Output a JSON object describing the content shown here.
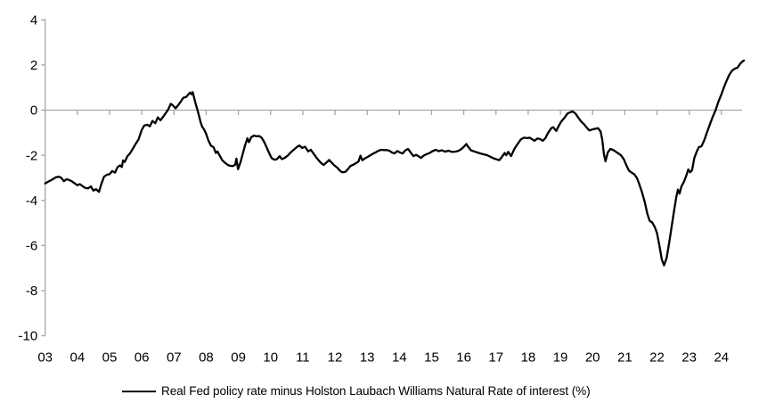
{
  "chart_data": {
    "type": "line",
    "title": "",
    "grid": false,
    "zero_line": true,
    "legend_position": "bottom",
    "line_color": "#000000",
    "axis_color": "#a6a6a6",
    "xlim": [
      2003,
      2024.75
    ],
    "ylim": [
      -10,
      4
    ],
    "x_ticks": [
      {
        "value": 2003,
        "label": "03"
      },
      {
        "value": 2004,
        "label": "04"
      },
      {
        "value": 2005,
        "label": "05"
      },
      {
        "value": 2006,
        "label": "06"
      },
      {
        "value": 2007,
        "label": "07"
      },
      {
        "value": 2008,
        "label": "08"
      },
      {
        "value": 2009,
        "label": "09"
      },
      {
        "value": 2010,
        "label": "10"
      },
      {
        "value": 2011,
        "label": "11"
      },
      {
        "value": 2012,
        "label": "12"
      },
      {
        "value": 2013,
        "label": "13"
      },
      {
        "value": 2014,
        "label": "14"
      },
      {
        "value": 2015,
        "label": "15"
      },
      {
        "value": 2016,
        "label": "16"
      },
      {
        "value": 2017,
        "label": "17"
      },
      {
        "value": 2018,
        "label": "18"
      },
      {
        "value": 2019,
        "label": "19"
      },
      {
        "value": 2020,
        "label": "20"
      },
      {
        "value": 2021,
        "label": "21"
      },
      {
        "value": 2022,
        "label": "22"
      },
      {
        "value": 2023,
        "label": "23"
      },
      {
        "value": 2024,
        "label": "24"
      }
    ],
    "y_ticks": [
      {
        "value": 4,
        "label": "4"
      },
      {
        "value": 2,
        "label": "2"
      },
      {
        "value": 0,
        "label": "0"
      },
      {
        "value": -2,
        "label": "-2"
      },
      {
        "value": -4,
        "label": "-4"
      },
      {
        "value": -6,
        "label": "-6"
      },
      {
        "value": -8,
        "label": "-8"
      },
      {
        "value": -10,
        "label": "-10"
      }
    ],
    "series": [
      {
        "name": "Real Fed policy rate minus Holston Laubach Williams Natural Rate of interest (%)",
        "points": [
          [
            2003.0,
            -3.25
          ],
          [
            2003.08,
            -3.18
          ],
          [
            2003.17,
            -3.12
          ],
          [
            2003.25,
            -3.05
          ],
          [
            2003.33,
            -2.98
          ],
          [
            2003.42,
            -2.95
          ],
          [
            2003.5,
            -3.0
          ],
          [
            2003.58,
            -3.15
          ],
          [
            2003.67,
            -3.06
          ],
          [
            2003.75,
            -3.1
          ],
          [
            2003.83,
            -3.16
          ],
          [
            2003.92,
            -3.25
          ],
          [
            2004.0,
            -3.33
          ],
          [
            2004.08,
            -3.28
          ],
          [
            2004.17,
            -3.38
          ],
          [
            2004.25,
            -3.45
          ],
          [
            2004.33,
            -3.47
          ],
          [
            2004.42,
            -3.38
          ],
          [
            2004.5,
            -3.57
          ],
          [
            2004.58,
            -3.5
          ],
          [
            2004.67,
            -3.62
          ],
          [
            2004.75,
            -3.25
          ],
          [
            2004.83,
            -2.95
          ],
          [
            2004.92,
            -2.86
          ],
          [
            2005.0,
            -2.84
          ],
          [
            2005.08,
            -2.7
          ],
          [
            2005.17,
            -2.77
          ],
          [
            2005.25,
            -2.52
          ],
          [
            2005.33,
            -2.45
          ],
          [
            2005.38,
            -2.52
          ],
          [
            2005.42,
            -2.23
          ],
          [
            2005.47,
            -2.3
          ],
          [
            2005.55,
            -2.05
          ],
          [
            2005.63,
            -1.92
          ],
          [
            2005.72,
            -1.72
          ],
          [
            2005.8,
            -1.52
          ],
          [
            2005.9,
            -1.3
          ],
          [
            2006.0,
            -0.88
          ],
          [
            2006.08,
            -0.68
          ],
          [
            2006.17,
            -0.65
          ],
          [
            2006.25,
            -0.72
          ],
          [
            2006.33,
            -0.48
          ],
          [
            2006.42,
            -0.58
          ],
          [
            2006.5,
            -0.32
          ],
          [
            2006.58,
            -0.45
          ],
          [
            2006.67,
            -0.28
          ],
          [
            2006.75,
            -0.12
          ],
          [
            2006.83,
            0.05
          ],
          [
            2006.9,
            0.28
          ],
          [
            2006.97,
            0.2
          ],
          [
            2007.05,
            0.08
          ],
          [
            2007.13,
            0.22
          ],
          [
            2007.21,
            0.38
          ],
          [
            2007.29,
            0.55
          ],
          [
            2007.38,
            0.58
          ],
          [
            2007.46,
            0.72
          ],
          [
            2007.5,
            0.78
          ],
          [
            2007.54,
            0.7
          ],
          [
            2007.58,
            0.8
          ],
          [
            2007.67,
            0.3
          ],
          [
            2007.75,
            -0.1
          ],
          [
            2007.83,
            -0.55
          ],
          [
            2007.88,
            -0.75
          ],
          [
            2007.92,
            -0.82
          ],
          [
            2007.99,
            -1.02
          ],
          [
            2008.07,
            -1.35
          ],
          [
            2008.15,
            -1.58
          ],
          [
            2008.23,
            -1.64
          ],
          [
            2008.3,
            -1.9
          ],
          [
            2008.35,
            -1.83
          ],
          [
            2008.42,
            -2.02
          ],
          [
            2008.5,
            -2.22
          ],
          [
            2008.58,
            -2.33
          ],
          [
            2008.67,
            -2.43
          ],
          [
            2008.75,
            -2.47
          ],
          [
            2008.83,
            -2.48
          ],
          [
            2008.9,
            -2.42
          ],
          [
            2008.94,
            -2.15
          ],
          [
            2008.99,
            -2.62
          ],
          [
            2009.06,
            -2.33
          ],
          [
            2009.13,
            -1.97
          ],
          [
            2009.2,
            -1.6
          ],
          [
            2009.28,
            -1.25
          ],
          [
            2009.33,
            -1.42
          ],
          [
            2009.4,
            -1.2
          ],
          [
            2009.48,
            -1.13
          ],
          [
            2009.56,
            -1.16
          ],
          [
            2009.65,
            -1.15
          ],
          [
            2009.72,
            -1.22
          ],
          [
            2009.79,
            -1.38
          ],
          [
            2009.87,
            -1.62
          ],
          [
            2009.95,
            -1.88
          ],
          [
            2010.03,
            -2.12
          ],
          [
            2010.12,
            -2.2
          ],
          [
            2010.2,
            -2.17
          ],
          [
            2010.28,
            -2.04
          ],
          [
            2010.35,
            -2.17
          ],
          [
            2010.44,
            -2.12
          ],
          [
            2010.53,
            -2.02
          ],
          [
            2010.62,
            -1.88
          ],
          [
            2010.72,
            -1.75
          ],
          [
            2010.82,
            -1.63
          ],
          [
            2010.9,
            -1.57
          ],
          [
            2010.98,
            -1.68
          ],
          [
            2011.07,
            -1.62
          ],
          [
            2011.17,
            -1.83
          ],
          [
            2011.25,
            -1.76
          ],
          [
            2011.33,
            -1.92
          ],
          [
            2011.42,
            -2.1
          ],
          [
            2011.5,
            -2.24
          ],
          [
            2011.58,
            -2.36
          ],
          [
            2011.65,
            -2.43
          ],
          [
            2011.73,
            -2.33
          ],
          [
            2011.82,
            -2.21
          ],
          [
            2011.9,
            -2.33
          ],
          [
            2011.98,
            -2.45
          ],
          [
            2012.07,
            -2.55
          ],
          [
            2012.15,
            -2.68
          ],
          [
            2012.23,
            -2.76
          ],
          [
            2012.32,
            -2.74
          ],
          [
            2012.4,
            -2.62
          ],
          [
            2012.48,
            -2.48
          ],
          [
            2012.57,
            -2.42
          ],
          [
            2012.65,
            -2.35
          ],
          [
            2012.73,
            -2.28
          ],
          [
            2012.79,
            -2.02
          ],
          [
            2012.85,
            -2.22
          ],
          [
            2012.93,
            -2.14
          ],
          [
            2013.02,
            -2.07
          ],
          [
            2013.1,
            -2.0
          ],
          [
            2013.18,
            -1.93
          ],
          [
            2013.27,
            -1.87
          ],
          [
            2013.35,
            -1.8
          ],
          [
            2013.44,
            -1.76
          ],
          [
            2013.52,
            -1.77
          ],
          [
            2013.6,
            -1.77
          ],
          [
            2013.69,
            -1.8
          ],
          [
            2013.77,
            -1.88
          ],
          [
            2013.85,
            -1.92
          ],
          [
            2013.94,
            -1.81
          ],
          [
            2014.02,
            -1.88
          ],
          [
            2014.1,
            -1.92
          ],
          [
            2014.19,
            -1.78
          ],
          [
            2014.27,
            -1.72
          ],
          [
            2014.35,
            -1.88
          ],
          [
            2014.44,
            -2.04
          ],
          [
            2014.52,
            -1.98
          ],
          [
            2014.6,
            -2.05
          ],
          [
            2014.67,
            -2.12
          ],
          [
            2014.75,
            -2.02
          ],
          [
            2014.85,
            -1.95
          ],
          [
            2014.94,
            -1.9
          ],
          [
            2015.03,
            -1.82
          ],
          [
            2015.13,
            -1.76
          ],
          [
            2015.22,
            -1.82
          ],
          [
            2015.32,
            -1.78
          ],
          [
            2015.42,
            -1.84
          ],
          [
            2015.52,
            -1.8
          ],
          [
            2015.63,
            -1.85
          ],
          [
            2015.73,
            -1.84
          ],
          [
            2015.83,
            -1.81
          ],
          [
            2015.93,
            -1.72
          ],
          [
            2016.02,
            -1.6
          ],
          [
            2016.08,
            -1.5
          ],
          [
            2016.15,
            -1.65
          ],
          [
            2016.22,
            -1.78
          ],
          [
            2016.32,
            -1.83
          ],
          [
            2016.43,
            -1.88
          ],
          [
            2016.53,
            -1.93
          ],
          [
            2016.63,
            -1.96
          ],
          [
            2016.73,
            -2.0
          ],
          [
            2016.83,
            -2.07
          ],
          [
            2016.93,
            -2.14
          ],
          [
            2017.02,
            -2.18
          ],
          [
            2017.1,
            -2.22
          ],
          [
            2017.18,
            -2.08
          ],
          [
            2017.27,
            -1.9
          ],
          [
            2017.32,
            -2.0
          ],
          [
            2017.38,
            -1.85
          ],
          [
            2017.47,
            -2.04
          ],
          [
            2017.57,
            -1.72
          ],
          [
            2017.67,
            -1.5
          ],
          [
            2017.77,
            -1.3
          ],
          [
            2017.87,
            -1.22
          ],
          [
            2017.97,
            -1.24
          ],
          [
            2018.05,
            -1.22
          ],
          [
            2018.13,
            -1.3
          ],
          [
            2018.2,
            -1.36
          ],
          [
            2018.28,
            -1.26
          ],
          [
            2018.37,
            -1.28
          ],
          [
            2018.45,
            -1.36
          ],
          [
            2018.53,
            -1.25
          ],
          [
            2018.62,
            -1.0
          ],
          [
            2018.72,
            -0.8
          ],
          [
            2018.78,
            -0.76
          ],
          [
            2018.87,
            -0.92
          ],
          [
            2018.95,
            -0.7
          ],
          [
            2019.03,
            -0.5
          ],
          [
            2019.12,
            -0.35
          ],
          [
            2019.22,
            -0.15
          ],
          [
            2019.3,
            -0.1
          ],
          [
            2019.38,
            -0.06
          ],
          [
            2019.47,
            -0.15
          ],
          [
            2019.55,
            -0.32
          ],
          [
            2019.63,
            -0.48
          ],
          [
            2019.73,
            -0.62
          ],
          [
            2019.82,
            -0.78
          ],
          [
            2019.9,
            -0.9
          ],
          [
            2019.98,
            -0.86
          ],
          [
            2020.07,
            -0.83
          ],
          [
            2020.17,
            -0.8
          ],
          [
            2020.25,
            -0.95
          ],
          [
            2020.3,
            -1.3
          ],
          [
            2020.35,
            -1.95
          ],
          [
            2020.4,
            -2.27
          ],
          [
            2020.47,
            -1.88
          ],
          [
            2020.55,
            -1.72
          ],
          [
            2020.63,
            -1.76
          ],
          [
            2020.72,
            -1.84
          ],
          [
            2020.8,
            -1.92
          ],
          [
            2020.88,
            -2.0
          ],
          [
            2020.97,
            -2.18
          ],
          [
            2021.05,
            -2.45
          ],
          [
            2021.13,
            -2.68
          ],
          [
            2021.22,
            -2.78
          ],
          [
            2021.3,
            -2.85
          ],
          [
            2021.38,
            -3.02
          ],
          [
            2021.45,
            -3.28
          ],
          [
            2021.53,
            -3.62
          ],
          [
            2021.62,
            -4.08
          ],
          [
            2021.7,
            -4.6
          ],
          [
            2021.77,
            -4.9
          ],
          [
            2021.85,
            -4.98
          ],
          [
            2021.93,
            -5.18
          ],
          [
            2022.0,
            -5.45
          ],
          [
            2022.08,
            -6.05
          ],
          [
            2022.15,
            -6.62
          ],
          [
            2022.22,
            -6.88
          ],
          [
            2022.3,
            -6.55
          ],
          [
            2022.37,
            -5.95
          ],
          [
            2022.45,
            -5.2
          ],
          [
            2022.53,
            -4.45
          ],
          [
            2022.6,
            -3.85
          ],
          [
            2022.65,
            -3.52
          ],
          [
            2022.7,
            -3.7
          ],
          [
            2022.76,
            -3.37
          ],
          [
            2022.83,
            -3.2
          ],
          [
            2022.9,
            -2.95
          ],
          [
            2022.97,
            -2.63
          ],
          [
            2023.03,
            -2.76
          ],
          [
            2023.09,
            -2.66
          ],
          [
            2023.16,
            -2.12
          ],
          [
            2023.23,
            -1.85
          ],
          [
            2023.3,
            -1.64
          ],
          [
            2023.38,
            -1.6
          ],
          [
            2023.46,
            -1.36
          ],
          [
            2023.55,
            -1.0
          ],
          [
            2023.64,
            -0.64
          ],
          [
            2023.73,
            -0.3
          ],
          [
            2023.82,
            0.0
          ],
          [
            2023.91,
            0.38
          ],
          [
            2024.0,
            0.7
          ],
          [
            2024.09,
            1.05
          ],
          [
            2024.17,
            1.33
          ],
          [
            2024.25,
            1.57
          ],
          [
            2024.33,
            1.75
          ],
          [
            2024.42,
            1.84
          ],
          [
            2024.5,
            1.88
          ],
          [
            2024.58,
            2.05
          ],
          [
            2024.65,
            2.15
          ],
          [
            2024.7,
            2.2
          ]
        ]
      }
    ]
  }
}
